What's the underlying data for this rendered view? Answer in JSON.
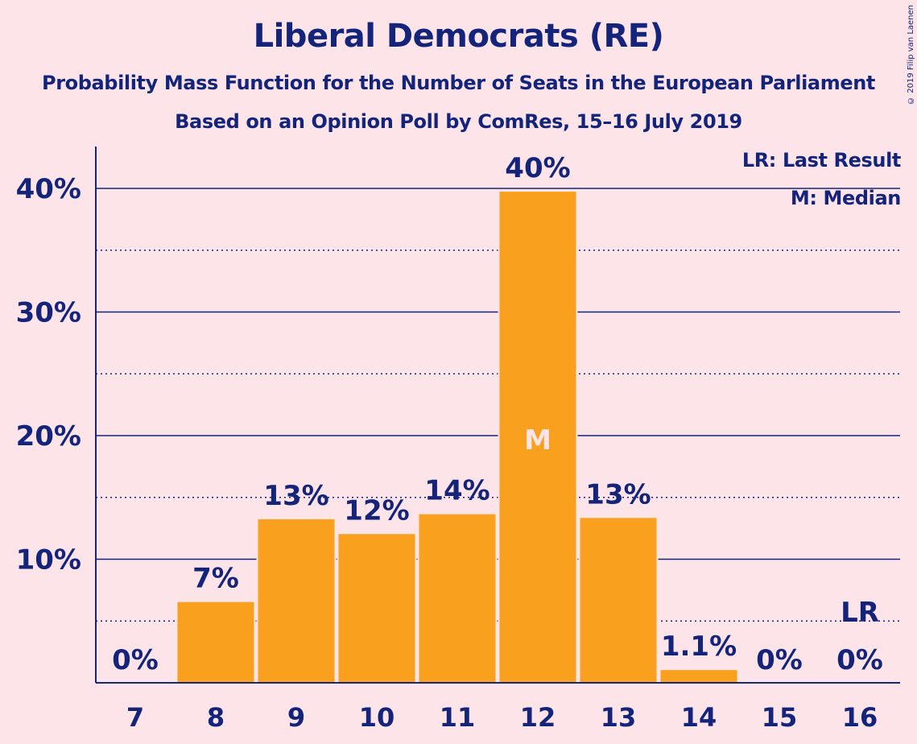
{
  "title": "Liberal Democrats (RE)",
  "subtitle1": "Probability Mass Function for the Number of Seats in the European Parliament",
  "subtitle2": "Based on an Opinion Poll by ComRes, 15–16 July 2019",
  "copyright": "© 2019 Filip van Laenen",
  "legend": {
    "lr": "LR: Last Result",
    "m": "M: Median"
  },
  "colors": {
    "bar": "#f9a11e",
    "axis": "#14247a",
    "background": "#fde4e8",
    "median_text": "#fde4e8"
  },
  "chart_data": {
    "type": "bar",
    "title": "Liberal Democrats (RE)",
    "categories": [
      "7",
      "8",
      "9",
      "10",
      "11",
      "12",
      "13",
      "14",
      "15",
      "16"
    ],
    "values": [
      0,
      6.6,
      13.3,
      12.1,
      13.7,
      39.8,
      13.4,
      1.1,
      0,
      0
    ],
    "data_labels": [
      "0%",
      "7%",
      "13%",
      "12%",
      "14%",
      "40%",
      "13%",
      "1.1%",
      "0%",
      "0%"
    ],
    "yticks": [
      10,
      20,
      30,
      40
    ],
    "ytick_labels": [
      "10%",
      "20%",
      "30%",
      "40%"
    ],
    "ylim": [
      0,
      40
    ],
    "median_category": "12",
    "median_marker": "M",
    "last_result_category": "16",
    "last_result_marker": "LR",
    "grid": true,
    "legend_position": "top-right"
  }
}
